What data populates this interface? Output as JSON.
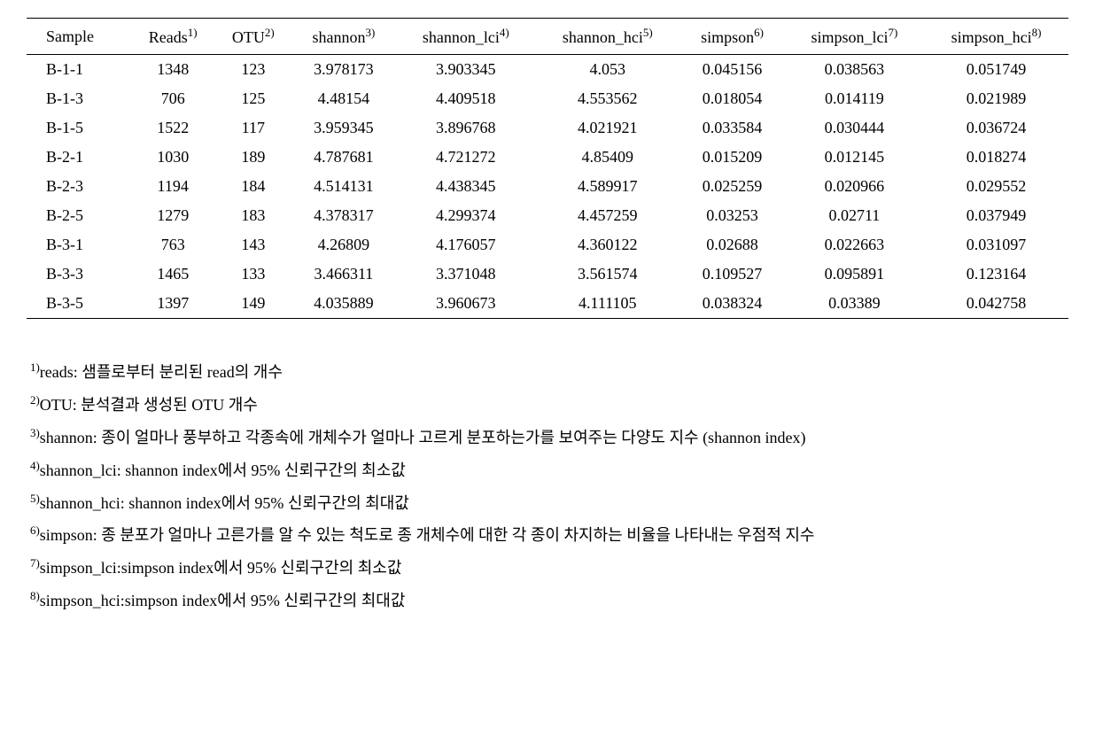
{
  "table": {
    "columns": [
      {
        "label": "Sample",
        "sup": ""
      },
      {
        "label": "Reads",
        "sup": "1)"
      },
      {
        "label": "OTU",
        "sup": "2)"
      },
      {
        "label": "shannon",
        "sup": "3)"
      },
      {
        "label": "shannon_lci",
        "sup": "4)"
      },
      {
        "label": "shannon_hci",
        "sup": "5)"
      },
      {
        "label": "simpson",
        "sup": "6)"
      },
      {
        "label": "simpson_lci",
        "sup": "7)"
      },
      {
        "label": "simpson_hci",
        "sup": "8)"
      }
    ],
    "rows": [
      [
        "B-1-1",
        "1348",
        "123",
        "3.978173",
        "3.903345",
        "4.053",
        "0.045156",
        "0.038563",
        "0.051749"
      ],
      [
        "B-1-3",
        "706",
        "125",
        "4.48154",
        "4.409518",
        "4.553562",
        "0.018054",
        "0.014119",
        "0.021989"
      ],
      [
        "B-1-5",
        "1522",
        "117",
        "3.959345",
        "3.896768",
        "4.021921",
        "0.033584",
        "0.030444",
        "0.036724"
      ],
      [
        "B-2-1",
        "1030",
        "189",
        "4.787681",
        "4.721272",
        "4.85409",
        "0.015209",
        "0.012145",
        "0.018274"
      ],
      [
        "B-2-3",
        "1194",
        "184",
        "4.514131",
        "4.438345",
        "4.589917",
        "0.025259",
        "0.020966",
        "0.029552"
      ],
      [
        "B-2-5",
        "1279",
        "183",
        "4.378317",
        "4.299374",
        "4.457259",
        "0.03253",
        "0.02711",
        "0.037949"
      ],
      [
        "B-3-1",
        "763",
        "143",
        "4.26809",
        "4.176057",
        "4.360122",
        "0.02688",
        "0.022663",
        "0.031097"
      ],
      [
        "B-3-3",
        "1465",
        "133",
        "3.466311",
        "3.371048",
        "3.561574",
        "0.109527",
        "0.095891",
        "0.123164"
      ],
      [
        "B-3-5",
        "1397",
        "149",
        "4.035889",
        "3.960673",
        "4.111105",
        "0.038324",
        "0.03389",
        "0.042758"
      ]
    ]
  },
  "footnotes": [
    {
      "sup": "1)",
      "text": "reads: 샘플로부터 분리된 read의 개수"
    },
    {
      "sup": "2)",
      "text": "OTU: 분석결과 생성된 OTU 개수"
    },
    {
      "sup": "3)",
      "text": "shannon: 종이 얼마나 풍부하고 각종속에 개체수가 얼마나 고르게 분포하는가를 보여주는 다양도 지수 (shannon index)"
    },
    {
      "sup": "4)",
      "text": "shannon_lci: shannon index에서 95% 신뢰구간의 최소값"
    },
    {
      "sup": "5)",
      "text": "shannon_hci: shannon index에서 95% 신뢰구간의 최대값"
    },
    {
      "sup": "6)",
      "text": "simpson: 종 분포가 얼마나 고른가를 알 수 있는 척도로 종 개체수에 대한 각 종이 차지하는 비율을 나타내는 우점적 지수"
    },
    {
      "sup": "7)",
      "text": "simpson_lci:simpson index에서 95% 신뢰구간의 최소값"
    },
    {
      "sup": "8)",
      "text": "simpson_hci:simpson index에서 95% 신뢰구간의 최대값"
    }
  ]
}
